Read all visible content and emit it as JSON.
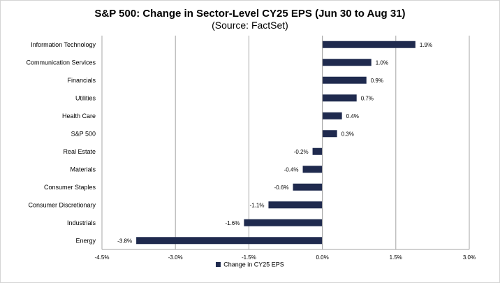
{
  "chart_data": {
    "type": "bar",
    "orientation": "horizontal",
    "title": "S&P 500: Change in Sector-Level CY25 EPS (Jun 30 to Aug 31)",
    "subtitle": "(Source: FactSet)",
    "categories": [
      "Information Technology",
      "Communication Services",
      "Financials",
      "Utilities",
      "Health Care",
      "S&P 500",
      "Real Estate",
      "Materials",
      "Consumer Staples",
      "Consumer Discretionary",
      "Industrials",
      "Energy"
    ],
    "series": [
      {
        "name": "Change in CY25 EPS",
        "values": [
          1.9,
          1.0,
          0.9,
          0.7,
          0.4,
          0.3,
          -0.2,
          -0.4,
          -0.6,
          -1.1,
          -1.6,
          -3.8
        ],
        "labels": [
          "1.9%",
          "1.0%",
          "0.9%",
          "0.7%",
          "0.4%",
          "0.3%",
          "-0.2%",
          "-0.4%",
          "-0.6%",
          "-1.1%",
          "-1.6%",
          "-3.8%"
        ]
      }
    ],
    "xlim": [
      -4.5,
      3.0
    ],
    "xticks": [
      -4.5,
      -3.0,
      -1.5,
      0.0,
      1.5,
      3.0
    ],
    "xtick_labels": [
      "-4.5%",
      "-3.0%",
      "-1.5%",
      "0.0%",
      "1.5%",
      "3.0%"
    ],
    "grid": "vertical",
    "legend_position": "bottom",
    "bar_color": "#1f2a4e",
    "grid_color": "#a6a6a6"
  }
}
